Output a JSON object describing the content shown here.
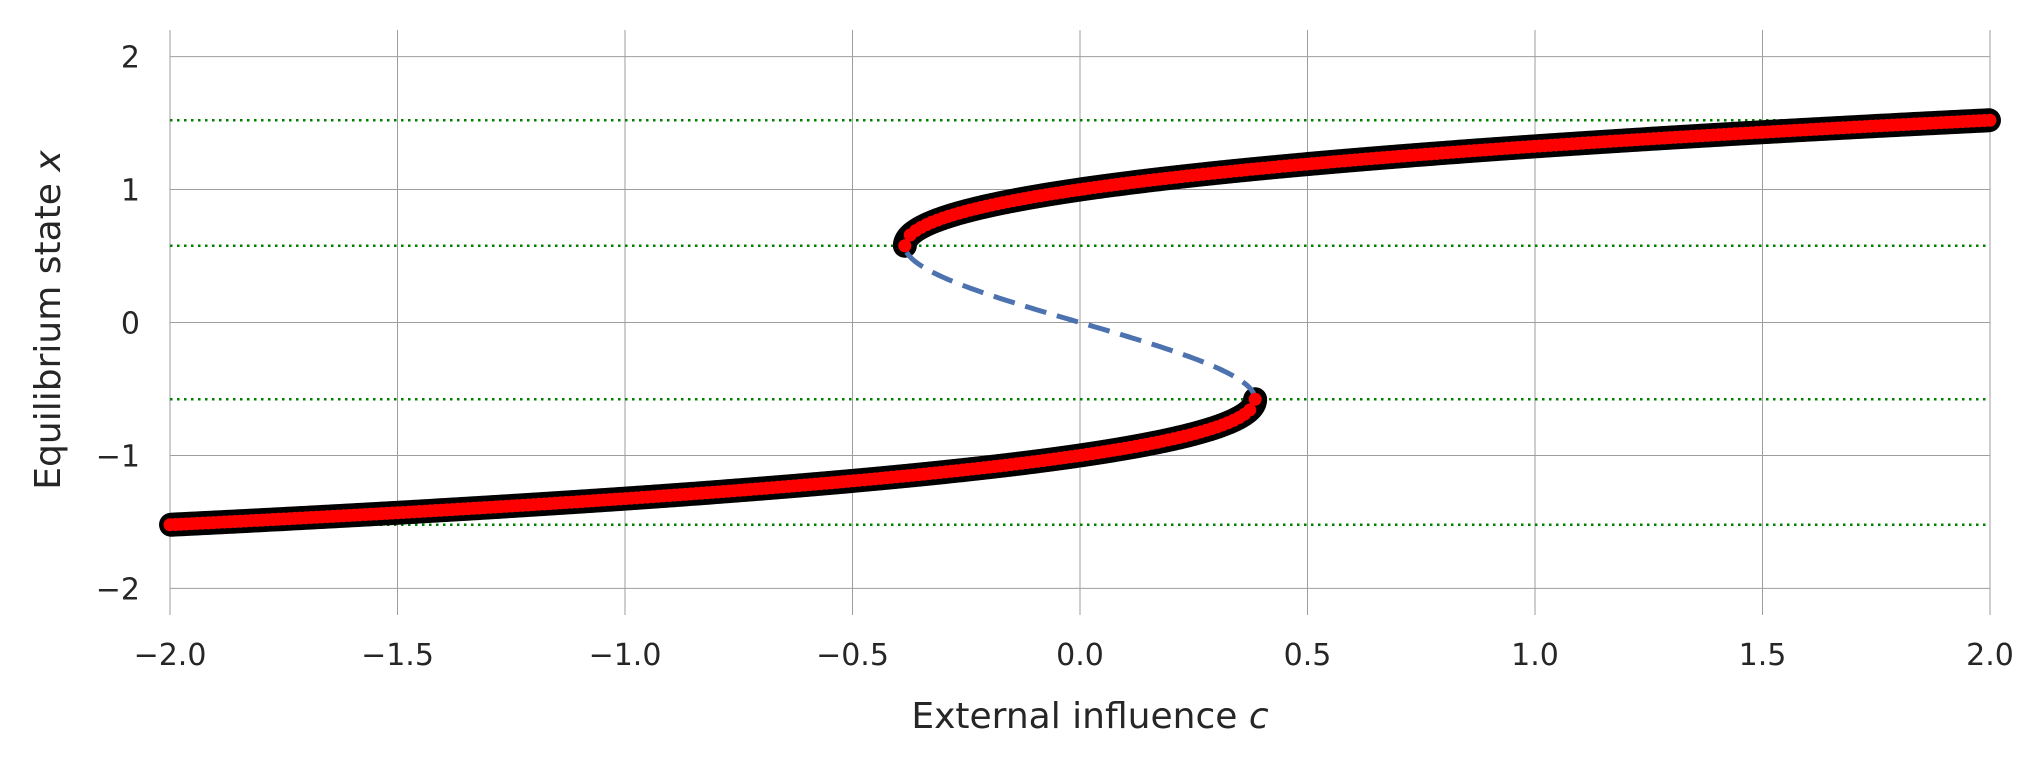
{
  "chart_data": {
    "type": "line",
    "title": "",
    "xlabel": "External influence",
    "xlabel_var": "c",
    "ylabel": "Equilibrium state",
    "ylabel_var": "x",
    "xlim": [
      -2.0,
      2.0
    ],
    "ylim": [
      -2.2,
      2.2
    ],
    "x_ticks": [
      -2.0,
      -1.5,
      -1.0,
      -0.5,
      0.0,
      0.5,
      1.0,
      1.5,
      2.0
    ],
    "x_tick_labels": [
      "−2.0",
      "−1.5",
      "−1.0",
      "−0.5",
      "0.0",
      "0.5",
      "1.0",
      "1.5",
      "2.0"
    ],
    "y_ticks": [
      2,
      1,
      0,
      -1,
      -2
    ],
    "y_tick_labels": [
      "2",
      "1",
      "0",
      "−1",
      "−2"
    ],
    "grid": true,
    "model": "c = x^3 - x",
    "series": [
      {
        "role": "stable-upper",
        "style": "thick-black",
        "x_range": [
          -0.385,
          2.0
        ],
        "y_range": [
          0.577,
          1.521
        ]
      },
      {
        "role": "stable-lower",
        "style": "thick-black",
        "x_range": [
          -2.0,
          0.385
        ],
        "y_range": [
          -1.521,
          -0.577
        ]
      },
      {
        "role": "unstable-middle",
        "style": "dashed-blue",
        "x_range": [
          -0.385,
          0.385
        ],
        "y_range": [
          -0.577,
          0.577
        ]
      },
      {
        "role": "markers-upper",
        "style": "red-dots",
        "x_range": [
          -0.385,
          2.0
        ]
      },
      {
        "role": "markers-lower",
        "style": "red-dots",
        "x_range": [
          -2.0,
          0.385
        ]
      }
    ],
    "reference_lines_y": [
      1.521,
      0.577,
      -0.577,
      -1.521
    ],
    "colors": {
      "stable": "#000000",
      "markers": "#ff0000",
      "unstable": "#4c72b0",
      "reference": "#008000",
      "grid": "#9e9e9e",
      "text": "#262626"
    }
  }
}
